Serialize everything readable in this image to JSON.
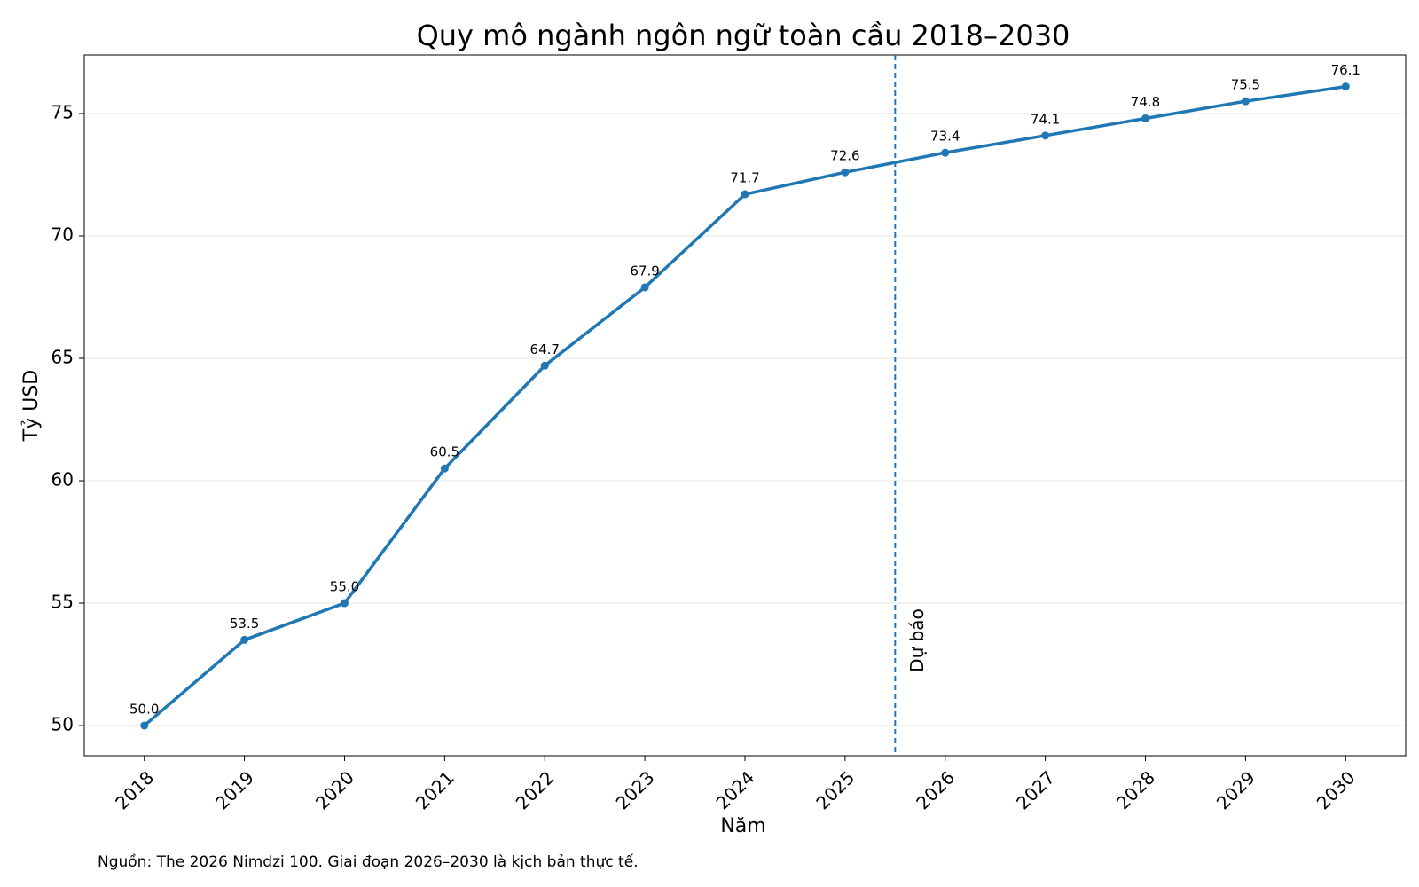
{
  "chart_data": {
    "type": "line",
    "title": "Quy mô ngành ngôn ngữ toàn cầu 2018–2030",
    "x_label": "Năm",
    "y_label": "Tỷ USD",
    "source": "Nguồn: The 2026 Nimdzi 100. Giai đoạn 2026–2030 là kịch bản thực tế.",
    "x": [
      2018,
      2019,
      2020,
      2021,
      2022,
      2023,
      2024,
      2025,
      2026,
      2027,
      2028,
      2029,
      2030
    ],
    "series": [
      {
        "name": "Tỷ USD",
        "color": "#1f77b4",
        "values": [
          50.0,
          53.5,
          55.0,
          60.5,
          64.7,
          67.9,
          71.7,
          72.6,
          73.4,
          74.1,
          74.8,
          75.5,
          76.1
        ],
        "value_labels": [
          "50.0",
          "53.5",
          "55.0",
          "60.5",
          "64.7",
          "67.9",
          "71.7",
          "72.6",
          "73.4",
          "74.1",
          "74.8",
          "75.5",
          "76.1"
        ]
      }
    ],
    "xlim": [
      2017.4,
      2030.6
    ],
    "ylim": [
      48.77,
      77.39
    ],
    "xticks": [
      2018,
      2019,
      2020,
      2021,
      2022,
      2023,
      2024,
      2025,
      2026,
      2027,
      2028,
      2029,
      2030
    ],
    "yticks": [
      50,
      55,
      60,
      65,
      70,
      75
    ],
    "grid": true,
    "annotations": [
      {
        "x": 2025.5,
        "text": "Dự báo"
      }
    ]
  }
}
